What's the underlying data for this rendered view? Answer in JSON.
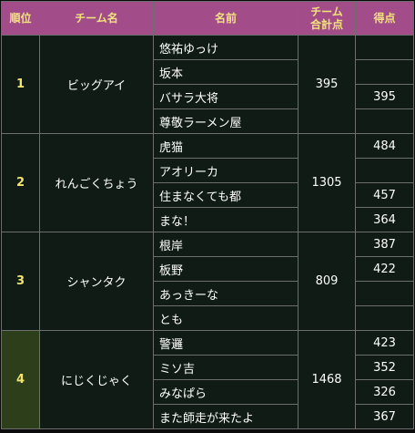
{
  "headers": {
    "rank": "順位",
    "team": "チーム名",
    "name": "名前",
    "total": "チーム\n合計点",
    "score": "得点"
  },
  "teams": [
    {
      "rank": "1",
      "team": "ビッグアイ",
      "total": "395",
      "highlight": false,
      "members": [
        {
          "name": "悠祐ゆっけ",
          "score": ""
        },
        {
          "name": "坂本",
          "score": ""
        },
        {
          "name": "バサラ大将",
          "score": "395"
        },
        {
          "name": "尊敬ラーメン屋",
          "score": ""
        }
      ]
    },
    {
      "rank": "2",
      "team": "れんごくちょう",
      "total": "1305",
      "highlight": false,
      "members": [
        {
          "name": "虎猫",
          "score": "484"
        },
        {
          "name": "アオリーカ",
          "score": ""
        },
        {
          "name": "住まなくても都",
          "score": "457"
        },
        {
          "name": "まな！",
          "score": "364"
        }
      ]
    },
    {
      "rank": "3",
      "team": "シャンタク",
      "total": "809",
      "highlight": false,
      "members": [
        {
          "name": "根岸",
          "score": "387"
        },
        {
          "name": "板野",
          "score": "422"
        },
        {
          "name": "あっきーな",
          "score": ""
        },
        {
          "name": "とも",
          "score": ""
        }
      ]
    },
    {
      "rank": "4",
      "team": "にじくじゃく",
      "total": "1468",
      "highlight": true,
      "members": [
        {
          "name": "警邏",
          "score": "423"
        },
        {
          "name": "ミソ吉",
          "score": "352"
        },
        {
          "name": "みなぱら",
          "score": "326"
        },
        {
          "name": "また師走が来たよ",
          "score": "367"
        }
      ]
    }
  ],
  "colors": {
    "header_bg": "#a24d8a",
    "header_text": "#f1e27a",
    "body_bg": "#0f1b14",
    "highlight_bg": "#2c3f1a",
    "border": "#6e6e6e"
  }
}
